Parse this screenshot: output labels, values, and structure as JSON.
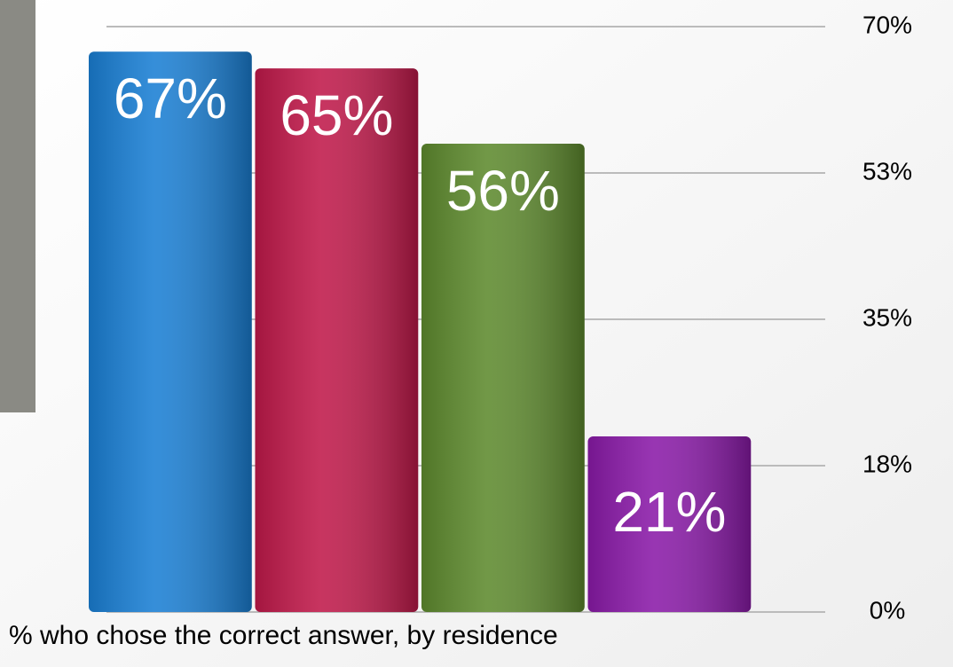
{
  "chart_data": {
    "type": "bar",
    "caption": "% who chose the correct answer, by residence",
    "categories": [
      null,
      null,
      null,
      null
    ],
    "values": [
      67,
      65,
      56,
      21
    ],
    "value_labels": [
      "67%",
      "65%",
      "56%",
      "21%"
    ],
    "colors": [
      "#1a7fd4",
      "#c0194a",
      "#5e8a2e",
      "#8a1aa8"
    ],
    "ylim": [
      0,
      70
    ],
    "yticks": [
      {
        "value": 0,
        "label": "0%"
      },
      {
        "value": 17.5,
        "label": "18%"
      },
      {
        "value": 35,
        "label": "35%"
      },
      {
        "value": 52.5,
        "label": "53%"
      },
      {
        "value": 70,
        "label": "70%"
      }
    ],
    "grid": true
  }
}
